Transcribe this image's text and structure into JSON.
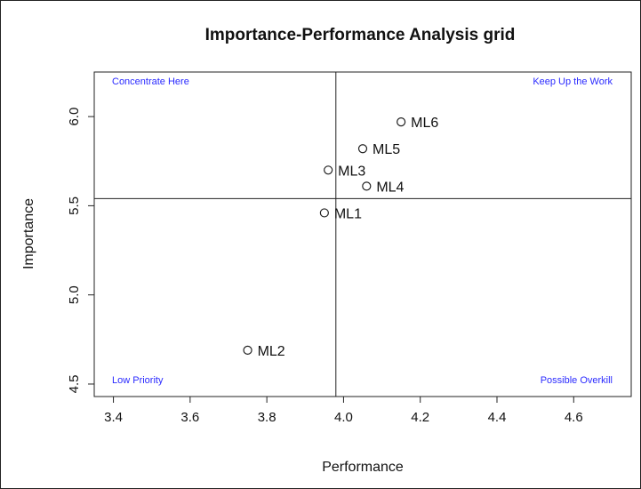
{
  "chart_data": {
    "type": "scatter",
    "title": "Importance-Performance Analysis grid",
    "xlabel": "Performance",
    "ylabel": "Importance",
    "xlim": [
      3.35,
      4.75
    ],
    "ylim": [
      4.43,
      6.25
    ],
    "xticks": [
      3.4,
      3.6,
      3.8,
      4.0,
      4.2,
      4.4,
      4.6
    ],
    "xtick_labels": [
      "3.4",
      "3.6",
      "3.8",
      "4.0",
      "4.2",
      "4.4",
      "4.6"
    ],
    "yticks": [
      4.5,
      5.0,
      5.5,
      6.0
    ],
    "ytick_labels": [
      "4.5",
      "5.0",
      "5.5",
      "6.0"
    ],
    "grid": false,
    "reference_lines": {
      "x": 3.98,
      "y": 5.54
    },
    "points": [
      {
        "label": "ML1",
        "x": 3.95,
        "y": 5.46
      },
      {
        "label": "ML2",
        "x": 3.75,
        "y": 4.69
      },
      {
        "label": "ML3",
        "x": 3.96,
        "y": 5.7
      },
      {
        "label": "ML4",
        "x": 4.06,
        "y": 5.61
      },
      {
        "label": "ML5",
        "x": 4.05,
        "y": 5.82
      },
      {
        "label": "ML6",
        "x": 4.15,
        "y": 5.97
      }
    ],
    "quadrant_labels": {
      "top_left": "Concentrate Here",
      "top_right": "Keep Up the Work",
      "bottom_left": "Low Priority",
      "bottom_right": "Possible Overkill"
    },
    "quadrant_label_color": "#2a2aff",
    "marker": "open-circle"
  }
}
